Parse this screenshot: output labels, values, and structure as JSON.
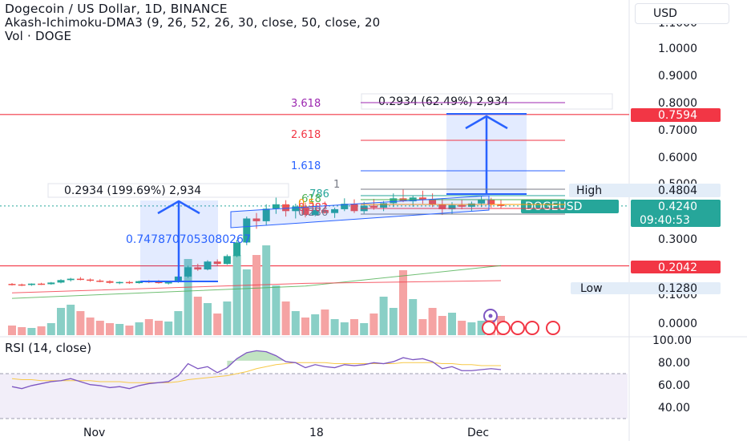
{
  "header": {
    "title": "Dogecoin / US Dollar, 1D, BINANCE",
    "indicator": "Akash-Ichimoku-DMA3 (9, 26, 52, 26, 30, close, 50, close, 20",
    "volume": "Vol · DOGE"
  },
  "currency": "USD",
  "rsi_label": "RSI (14, close)",
  "colors": {
    "up": "#26a69a",
    "down": "#ef5350",
    "vol_up": "#89cfc6",
    "vol_down": "#f5a3a3",
    "measure": "#2962ff",
    "red_line": "#f23645",
    "green_ma": "#4caf50",
    "rsi": "#7e57c2"
  },
  "price_axis": {
    "ticks": [
      "1.1000",
      "1.0000",
      "0.9000",
      "0.8000",
      "0.7000",
      "0.6000",
      "0.5000",
      "0.3000",
      "0.1000",
      "0.0000"
    ],
    "labels": {
      "red_top": "0.7594",
      "high_label": "High",
      "high_value": "0.4804",
      "symbol": "DOGEUSD",
      "price": "0.4240",
      "countdown": "09:40:53",
      "red_bottom": "0.2042",
      "low_label": "Low",
      "low_value": "0.1280"
    }
  },
  "rsi_axis": {
    "ticks": [
      "100.00",
      "80.00",
      "60.00",
      "40.00"
    ]
  },
  "time_axis": {
    "ticks": [
      "Nov",
      "18",
      "Dec"
    ]
  },
  "annotations": {
    "measure_left": "0.2934 (199.69%) 2,934",
    "measure_right": "0.2934 (62.49%) 2,934",
    "floating_number": "0.7478707053080267",
    "fib_3618": "3.618",
    "fib_2618": "2.618",
    "fib_1618": "1.618",
    "fib_1": "1",
    "fib_786": ".786",
    "fib_618": ".618",
    "fib_500": "0.5",
    "fib_382": "0.382",
    "fib_236": "0.236"
  },
  "chart_data": {
    "type": "candlestick",
    "title": "Dogecoin / US Dollar, 1D, BINANCE",
    "y_unit": "USD",
    "ylim": [
      0.0,
      1.1
    ],
    "candles": [
      [
        0.138,
        0.141,
        0.132,
        0.136
      ],
      [
        0.136,
        0.139,
        0.13,
        0.134
      ],
      [
        0.134,
        0.14,
        0.131,
        0.139
      ],
      [
        0.139,
        0.142,
        0.134,
        0.137
      ],
      [
        0.137,
        0.145,
        0.135,
        0.143
      ],
      [
        0.143,
        0.155,
        0.14,
        0.152
      ],
      [
        0.152,
        0.16,
        0.147,
        0.157
      ],
      [
        0.157,
        0.163,
        0.151,
        0.154
      ],
      [
        0.154,
        0.158,
        0.146,
        0.15
      ],
      [
        0.15,
        0.155,
        0.144,
        0.148
      ],
      [
        0.148,
        0.151,
        0.139,
        0.142
      ],
      [
        0.142,
        0.147,
        0.137,
        0.145
      ],
      [
        0.145,
        0.149,
        0.138,
        0.141
      ],
      [
        0.141,
        0.15,
        0.139,
        0.148
      ],
      [
        0.148,
        0.152,
        0.141,
        0.146
      ],
      [
        0.146,
        0.152,
        0.139,
        0.141
      ],
      [
        0.141,
        0.146,
        0.136,
        0.144
      ],
      [
        0.144,
        0.168,
        0.142,
        0.165
      ],
      [
        0.165,
        0.205,
        0.16,
        0.199
      ],
      [
        0.199,
        0.212,
        0.186,
        0.191
      ],
      [
        0.191,
        0.225,
        0.188,
        0.22
      ],
      [
        0.22,
        0.228,
        0.206,
        0.211
      ],
      [
        0.211,
        0.246,
        0.208,
        0.24
      ],
      [
        0.24,
        0.3,
        0.236,
        0.29
      ],
      [
        0.29,
        0.385,
        0.28,
        0.378
      ],
      [
        0.378,
        0.398,
        0.34,
        0.368
      ],
      [
        0.368,
        0.43,
        0.352,
        0.414
      ],
      [
        0.414,
        0.475,
        0.395,
        0.43
      ],
      [
        0.43,
        0.445,
        0.385,
        0.405
      ],
      [
        0.405,
        0.432,
        0.378,
        0.422
      ],
      [
        0.422,
        0.436,
        0.382,
        0.391
      ],
      [
        0.391,
        0.425,
        0.386,
        0.409
      ],
      [
        0.409,
        0.44,
        0.396,
        0.398
      ],
      [
        0.398,
        0.418,
        0.38,
        0.412
      ],
      [
        0.412,
        0.452,
        0.405,
        0.432
      ],
      [
        0.432,
        0.448,
        0.398,
        0.405
      ],
      [
        0.405,
        0.439,
        0.396,
        0.425
      ],
      [
        0.425,
        0.45,
        0.41,
        0.418
      ],
      [
        0.418,
        0.442,
        0.405,
        0.434
      ],
      [
        0.434,
        0.47,
        0.42,
        0.452
      ],
      [
        0.452,
        0.484,
        0.438,
        0.441
      ],
      [
        0.441,
        0.462,
        0.421,
        0.455
      ],
      [
        0.455,
        0.48,
        0.432,
        0.448
      ],
      [
        0.448,
        0.47,
        0.42,
        0.428
      ],
      [
        0.428,
        0.452,
        0.391,
        0.412
      ],
      [
        0.412,
        0.438,
        0.395,
        0.427
      ],
      [
        0.427,
        0.446,
        0.412,
        0.421
      ],
      [
        0.421,
        0.44,
        0.405,
        0.433
      ],
      [
        0.433,
        0.462,
        0.42,
        0.446
      ],
      [
        0.446,
        0.454,
        0.418,
        0.43
      ],
      [
        0.43,
        0.448,
        0.415,
        0.424
      ]
    ],
    "volume_rel": [
      0.12,
      0.1,
      0.09,
      0.11,
      0.15,
      0.34,
      0.38,
      0.3,
      0.22,
      0.18,
      0.15,
      0.14,
      0.12,
      0.16,
      0.2,
      0.18,
      0.17,
      0.3,
      0.95,
      0.48,
      0.4,
      0.27,
      0.42,
      1.0,
      0.82,
      1.0,
      1.12,
      0.62,
      0.42,
      0.3,
      0.22,
      0.26,
      0.32,
      0.2,
      0.16,
      0.2,
      0.15,
      0.27,
      0.48,
      0.34,
      0.81,
      0.45,
      0.2,
      0.34,
      0.24,
      0.28,
      0.18,
      0.16,
      0.18,
      0.19,
      0.24
    ],
    "rsi": [
      52,
      50,
      53,
      55,
      57,
      58,
      60,
      57,
      54,
      53,
      51,
      52,
      50,
      53,
      55,
      56,
      57,
      63,
      75,
      70,
      72,
      66,
      71,
      80,
      86,
      88,
      87,
      83,
      77,
      76,
      71,
      74,
      72,
      71,
      74,
      73,
      74,
      76,
      75,
      77,
      81,
      79,
      80,
      77,
      70,
      72,
      68,
      68,
      69,
      70,
      69
    ],
    "rsi_ma": [
      60,
      59,
      59,
      58,
      58,
      58,
      58,
      58,
      58,
      57,
      57,
      57,
      56,
      56,
      56,
      56,
      56,
      57,
      59,
      60,
      61,
      62,
      63,
      65,
      67,
      70,
      72,
      74,
      75,
      76,
      76,
      76,
      76,
      75,
      75,
      75,
      75,
      75,
      75,
      75,
      76,
      76,
      76,
      76,
      75,
      75,
      74,
      74,
      73,
      73,
      73
    ],
    "rsi_ylim": [
      20,
      110
    ],
    "horizontal_lines": [
      0.7594,
      0.2042
    ],
    "high": 0.4804,
    "low": 0.128,
    "last_price": 0.424,
    "moving_averages": [
      {
        "color": "green",
        "points": [
          [
            0,
            0.085
          ],
          [
            30,
            0.13
          ],
          [
            50,
            0.205
          ]
        ]
      },
      {
        "color": "red",
        "points": [
          [
            0,
            0.105
          ],
          [
            30,
            0.14
          ],
          [
            50,
            0.15
          ]
        ]
      }
    ]
  }
}
